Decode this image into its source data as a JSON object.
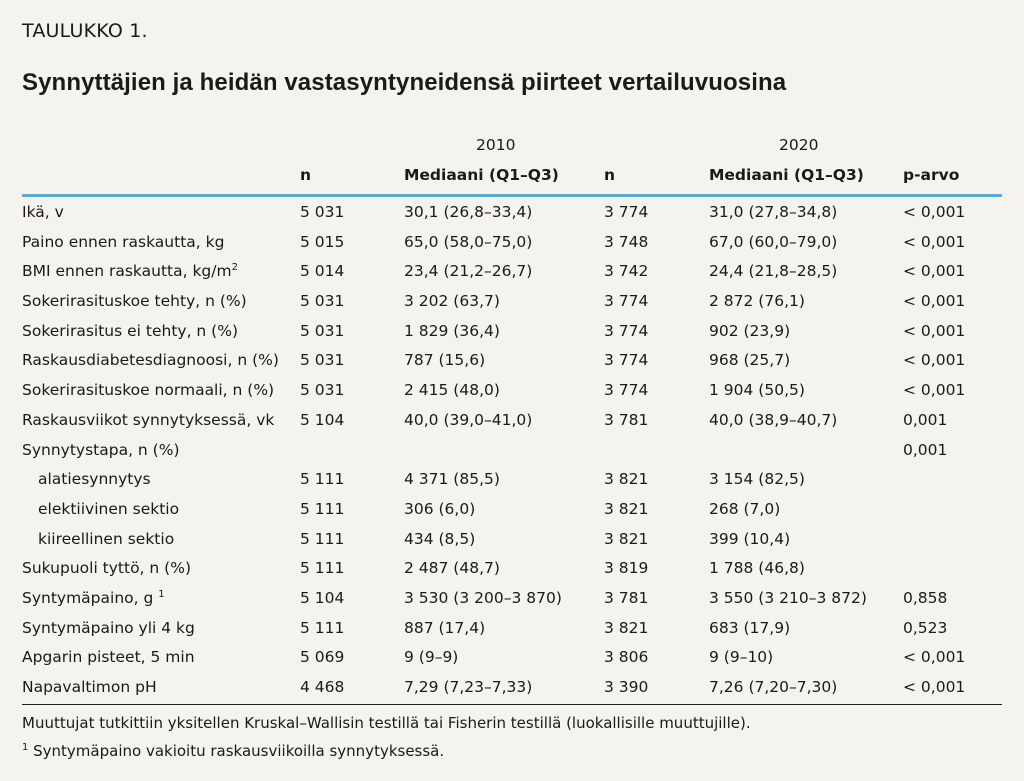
{
  "label": "TAULUKKO 1.",
  "title": "Synnyttäjien ja heidän vastasyntyneidensä piirteet vertailuvuosina",
  "years": [
    "2010",
    "2020"
  ],
  "columns": {
    "n": "n",
    "median": "Mediaani (Q1–Q3)",
    "p": "p-arvo"
  },
  "rows": [
    {
      "label": "Ikä, v",
      "n1": "5 031",
      "m1": "30,1 (26,8–33,4)",
      "n2": "3 774",
      "m2": "31,0 (27,8–34,8)",
      "p": "< 0,001"
    },
    {
      "label": "Paino ennen raskautta, kg",
      "n1": "5 015",
      "m1": "65,0 (58,0–75,0)",
      "n2": "3 748",
      "m2": "67,0 (60,0–79,0)",
      "p": "< 0,001"
    },
    {
      "label": "BMI ennen raskautta, kg/m",
      "sup": "2",
      "n1": "5 014",
      "m1": "23,4 (21,2–26,7)",
      "n2": "3 742",
      "m2": "24,4 (21,8–28,5)",
      "p": "< 0,001"
    },
    {
      "label": "Sokerirasituskoe tehty, n (%)",
      "n1": "5 031",
      "m1": "3 202 (63,7)",
      "n2": "3 774",
      "m2": "2 872 (76,1)",
      "p": "< 0,001"
    },
    {
      "label": "Sokerirasitus ei tehty, n (%)",
      "n1": "5 031",
      "m1": "1 829 (36,4)",
      "n2": "3 774",
      "m2": "902 (23,9)",
      "p": "< 0,001"
    },
    {
      "label": "Raskausdiabetesdiagnoosi, n (%)",
      "n1": "5 031",
      "m1": "787 (15,6)",
      "n2": "3 774",
      "m2": "968 (25,7)",
      "p": "< 0,001"
    },
    {
      "label": "Sokerirasituskoe normaali, n (%)",
      "n1": "5 031",
      "m1": "2 415 (48,0)",
      "n2": "3 774",
      "m2": "1 904 (50,5)",
      "p": "< 0,001"
    },
    {
      "label": "Raskausviikot synnytyksessä, vk",
      "n1": "5 104",
      "m1": "40,0 (39,0–41,0)",
      "n2": "3 781",
      "m2": "40,0 (38,9–40,7)",
      "p": "0,001"
    },
    {
      "label": "Synnytystapa, n (%)",
      "n1": "",
      "m1": "",
      "n2": "",
      "m2": "",
      "p": "0,001"
    },
    {
      "label": "alatiesynnytys",
      "indent": true,
      "n1": "5 111",
      "m1": "4 371 (85,5)",
      "n2": "3 821",
      "m2": "3 154 (82,5)",
      "p": ""
    },
    {
      "label": "elektiivinen sektio",
      "indent": true,
      "n1": "5 111",
      "m1": "306 (6,0)",
      "n2": "3 821",
      "m2": "268 (7,0)",
      "p": ""
    },
    {
      "label": "kiireellinen sektio",
      "indent": true,
      "n1": "5 111",
      "m1": "434 (8,5)",
      "n2": "3 821",
      "m2": "399 (10,4)",
      "p": ""
    },
    {
      "label": "Sukupuoli tyttö, n (%)",
      "n1": "5 111",
      "m1": "2 487 (48,7)",
      "n2": "3 819",
      "m2": "1 788 (46,8)",
      "p": ""
    },
    {
      "label": "Syntymäpaino, g",
      "sup": "1",
      "n1": "5 104",
      "m1": "3 530 (3 200–3 870)",
      "n2": "3 781",
      "m2": "3 550 (3 210–3 872)",
      "p": "0,858"
    },
    {
      "label": "Syntymäpaino yli 4 kg",
      "n1": "5 111",
      "m1": "887 (17,4)",
      "n2": "3 821",
      "m2": "683 (17,9)",
      "p": "0,523"
    },
    {
      "label": "Apgarin pisteet, 5 min",
      "n1": "5 069",
      "m1": "9 (9–9)",
      "n2": "3 806",
      "m2": "9 (9–10)",
      "p": "< 0,001"
    },
    {
      "label": "Napavaltimon pH",
      "n1": "4 468",
      "m1": "7,29 (7,23–7,33)",
      "n2": "3 390",
      "m2": "7,26 (7,20–7,30)",
      "p": "< 0,001"
    }
  ],
  "footnotes": {
    "note1": "Muuttujat tutkittiin yksitellen Kruskal–Wallisin testillä tai Fisherin testillä (luokallisille muuttujille).",
    "note2_sup": "1",
    "note2": " Syntymäpaino vakioitu raskausviikoilla synnytyksessä."
  }
}
